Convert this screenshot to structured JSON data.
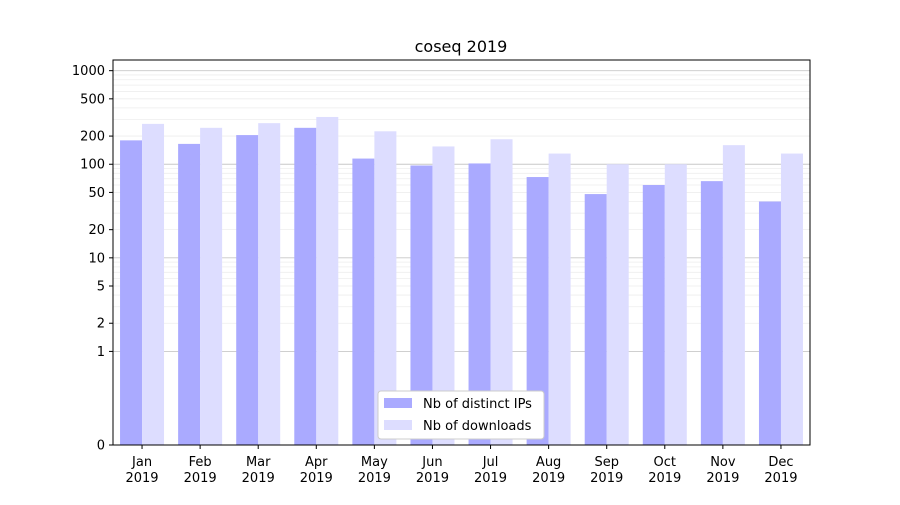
{
  "chart_data": {
    "type": "bar",
    "title": "coseq 2019",
    "xlabel": "",
    "ylabel": "",
    "y_scale": "symlog",
    "ylim": [
      0,
      1300
    ],
    "y_ticks": [
      {
        "value": 0,
        "label": "0"
      },
      {
        "value": 1,
        "label": "1"
      },
      {
        "value": 2,
        "label": "2"
      },
      {
        "value": 5,
        "label": "5"
      },
      {
        "value": 10,
        "label": "10"
      },
      {
        "value": 20,
        "label": "20"
      },
      {
        "value": 50,
        "label": "50"
      },
      {
        "value": 100,
        "label": "100"
      },
      {
        "value": 200,
        "label": "200"
      },
      {
        "value": 500,
        "label": "500"
      },
      {
        "value": 1000,
        "label": "1000"
      }
    ],
    "grid": true,
    "legend_position": "bottom-center",
    "categories": [
      {
        "month": "Jan",
        "year": "2019"
      },
      {
        "month": "Feb",
        "year": "2019"
      },
      {
        "month": "Mar",
        "year": "2019"
      },
      {
        "month": "Apr",
        "year": "2019"
      },
      {
        "month": "May",
        "year": "2019"
      },
      {
        "month": "Jun",
        "year": "2019"
      },
      {
        "month": "Jul",
        "year": "2019"
      },
      {
        "month": "Aug",
        "year": "2019"
      },
      {
        "month": "Sep",
        "year": "2019"
      },
      {
        "month": "Oct",
        "year": "2019"
      },
      {
        "month": "Nov",
        "year": "2019"
      },
      {
        "month": "Dec",
        "year": "2019"
      }
    ],
    "series": [
      {
        "name": "Nb of distinct IPs",
        "color": "#aaaaff",
        "values": [
          180,
          165,
          205,
          245,
          115,
          97,
          102,
          73,
          48,
          60,
          66,
          40
        ]
      },
      {
        "name": "Nb of downloads",
        "color": "#ddddff",
        "values": [
          270,
          245,
          275,
          320,
          225,
          155,
          185,
          130,
          100,
          100,
          160,
          130
        ]
      }
    ]
  }
}
